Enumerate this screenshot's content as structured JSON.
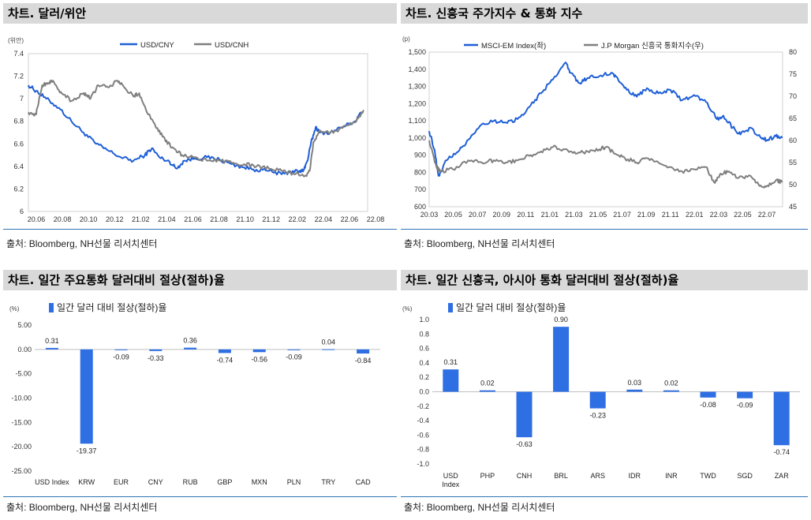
{
  "colors": {
    "blue": "#1f5fd6",
    "gray": "#7f7f7f",
    "bar": "#2f6fe4",
    "header_bg": "#d9d9d9",
    "rule": "#2e74b5"
  },
  "panels": [
    {
      "title": "차트. 달러/위안",
      "source": "출처: Bloomberg, NH선물 리서치센터"
    },
    {
      "title": "차트. 신흥국 주가지수 & 통화 지수",
      "source": "출처: Bloomberg, NH선물 리서치센터"
    },
    {
      "title": "차트. 일간 주요통화 달러대비 절상(절하)율",
      "source": "출처: Bloomberg, NH선물 리서치센터"
    },
    {
      "title": "차트. 일간 신흥국, 아시아 통화 달러대비 절상(절하)율",
      "source": "출처: Bloomberg, NH선물 리서치센터"
    }
  ],
  "chart_data": [
    {
      "type": "line",
      "unit_label": "(위안)",
      "y_ticks": [
        "7.4",
        "7.2",
        "7",
        "6.8",
        "6.6",
        "6.4",
        "6.2",
        "6"
      ],
      "ylim": [
        6,
        7.4
      ],
      "x_ticks": [
        "20.06",
        "20.08",
        "20.10",
        "20.12",
        "21.02",
        "21.04",
        "21.06",
        "21.08",
        "21.10",
        "21.12",
        "22.02",
        "22.04",
        "22.06",
        "22.08"
      ],
      "x_range": [
        "2020-06-01",
        "2022-09-15"
      ],
      "series": [
        {
          "name": "USD/CNY",
          "color": "#1f5fd6",
          "points": [
            [
              "2020-06-01",
              7.12
            ],
            [
              "2020-06-20",
              7.07
            ],
            [
              "2020-07-15",
              7.0
            ],
            [
              "2020-08-15",
              6.92
            ],
            [
              "2020-09-15",
              6.8
            ],
            [
              "2020-10-15",
              6.7
            ],
            [
              "2020-11-15",
              6.6
            ],
            [
              "2020-12-15",
              6.54
            ],
            [
              "2021-01-15",
              6.48
            ],
            [
              "2021-02-15",
              6.45
            ],
            [
              "2021-03-15",
              6.5
            ],
            [
              "2021-04-01",
              6.56
            ],
            [
              "2021-04-20",
              6.48
            ],
            [
              "2021-05-15",
              6.44
            ],
            [
              "2021-06-01",
              6.38
            ],
            [
              "2021-06-20",
              6.45
            ],
            [
              "2021-07-15",
              6.47
            ],
            [
              "2021-08-15",
              6.48
            ],
            [
              "2021-09-15",
              6.46
            ],
            [
              "2021-10-15",
              6.42
            ],
            [
              "2021-11-15",
              6.39
            ],
            [
              "2021-12-15",
              6.37
            ],
            [
              "2022-01-15",
              6.36
            ],
            [
              "2022-02-15",
              6.33
            ],
            [
              "2022-03-15",
              6.36
            ],
            [
              "2022-04-01",
              6.35
            ],
            [
              "2022-04-10",
              6.37
            ],
            [
              "2022-04-20",
              6.45
            ],
            [
              "2022-04-28",
              6.6
            ],
            [
              "2022-05-10",
              6.75
            ],
            [
              "2022-05-20",
              6.7
            ],
            [
              "2022-06-15",
              6.7
            ],
            [
              "2022-07-15",
              6.75
            ],
            [
              "2022-08-15",
              6.8
            ],
            [
              "2022-09-01",
              6.88
            ]
          ]
        },
        {
          "name": "USD/CNH",
          "color": "#7f7f7f",
          "points": [
            [
              "2020-06-01",
              6.88
            ],
            [
              "2020-06-20",
              6.86
            ],
            [
              "2020-07-05",
              7.12
            ],
            [
              "2020-07-20",
              7.14
            ],
            [
              "2020-08-01",
              7.16
            ],
            [
              "2020-08-20",
              7.06
            ],
            [
              "2020-09-15",
              6.98
            ],
            [
              "2020-10-15",
              7.05
            ],
            [
              "2020-11-01",
              7.0
            ],
            [
              "2020-11-20",
              7.12
            ],
            [
              "2020-12-15",
              7.1
            ],
            [
              "2021-01-05",
              7.16
            ],
            [
              "2021-01-20",
              7.12
            ],
            [
              "2021-02-15",
              7.02
            ],
            [
              "2021-03-01",
              7.05
            ],
            [
              "2021-03-20",
              6.88
            ],
            [
              "2021-04-15",
              6.74
            ],
            [
              "2021-05-05",
              6.62
            ],
            [
              "2021-05-25",
              6.56
            ],
            [
              "2021-06-15",
              6.5
            ],
            [
              "2021-07-15",
              6.48
            ],
            [
              "2021-08-15",
              6.45
            ],
            [
              "2021-09-15",
              6.45
            ],
            [
              "2021-10-15",
              6.43
            ],
            [
              "2021-11-15",
              6.42
            ],
            [
              "2021-12-15",
              6.4
            ],
            [
              "2022-01-15",
              6.38
            ],
            [
              "2022-02-15",
              6.36
            ],
            [
              "2022-03-15",
              6.34
            ],
            [
              "2022-04-15",
              6.32
            ],
            [
              "2022-04-25",
              6.36
            ],
            [
              "2022-05-05",
              6.62
            ],
            [
              "2022-05-20",
              6.72
            ],
            [
              "2022-06-15",
              6.7
            ],
            [
              "2022-07-15",
              6.74
            ],
            [
              "2022-08-15",
              6.79
            ],
            [
              "2022-09-05",
              6.9
            ]
          ]
        }
      ]
    },
    {
      "type": "line",
      "unit_label": "(p)",
      "y_ticks_left": [
        "1,500",
        "1,400",
        "1,300",
        "1,200",
        "1,100",
        "1,000",
        "900",
        "800",
        "700",
        "600"
      ],
      "ylim_left": [
        600,
        1500
      ],
      "y_ticks_right": [
        "80",
        "75",
        "70",
        "65",
        "60",
        "55",
        "50",
        "45"
      ],
      "ylim_right": [
        45,
        80
      ],
      "x_ticks": [
        "20.03",
        "20.05",
        "20.07",
        "20.09",
        "20.11",
        "21.01",
        "21.03",
        "21.05",
        "21.07",
        "21.09",
        "21.11",
        "22.01",
        "22.03",
        "22.05",
        "22.07"
      ],
      "x_range": [
        "2020-03-01",
        "2022-09-01"
      ],
      "series": [
        {
          "name": "MSCI-EM Index(좌)",
          "axis": "left",
          "color": "#1f5fd6",
          "points": [
            [
              "2020-03-01",
              1040
            ],
            [
              "2020-03-15",
              930
            ],
            [
              "2020-03-25",
              780
            ],
            [
              "2020-04-15",
              870
            ],
            [
              "2020-05-15",
              920
            ],
            [
              "2020-06-10",
              990
            ],
            [
              "2020-07-15",
              1080
            ],
            [
              "2020-08-15",
              1100
            ],
            [
              "2020-09-15",
              1090
            ],
            [
              "2020-10-15",
              1110
            ],
            [
              "2020-11-15",
              1180
            ],
            [
              "2020-12-15",
              1260
            ],
            [
              "2021-01-15",
              1340
            ],
            [
              "2021-02-17",
              1440
            ],
            [
              "2021-03-01",
              1380
            ],
            [
              "2021-03-25",
              1320
            ],
            [
              "2021-04-15",
              1350
            ],
            [
              "2021-05-15",
              1360
            ],
            [
              "2021-06-15",
              1380
            ],
            [
              "2021-07-01",
              1350
            ],
            [
              "2021-07-25",
              1280
            ],
            [
              "2021-08-20",
              1240
            ],
            [
              "2021-09-15",
              1290
            ],
            [
              "2021-10-15",
              1260
            ],
            [
              "2021-11-15",
              1280
            ],
            [
              "2021-12-15",
              1220
            ],
            [
              "2022-01-15",
              1250
            ],
            [
              "2022-02-15",
              1210
            ],
            [
              "2022-03-15",
              1110
            ],
            [
              "2022-04-01",
              1130
            ],
            [
              "2022-04-25",
              1060
            ],
            [
              "2022-05-15",
              1020
            ],
            [
              "2022-06-10",
              1060
            ],
            [
              "2022-07-10",
              995
            ],
            [
              "2022-07-25",
              990
            ],
            [
              "2022-08-15",
              1010
            ],
            [
              "2022-08-31",
              1000
            ]
          ]
        },
        {
          "name": "J.P Morgan 신흥국 통화지수(우)",
          "axis": "right",
          "color": "#7f7f7f",
          "points": [
            [
              "2020-03-01",
              60
            ],
            [
              "2020-03-20",
              54
            ],
            [
              "2020-04-01",
              53
            ],
            [
              "2020-05-01",
              53.5
            ],
            [
              "2020-06-10",
              55.5
            ],
            [
              "2020-07-15",
              55
            ],
            [
              "2020-08-15",
              55.5
            ],
            [
              "2020-09-15",
              55
            ],
            [
              "2020-10-15",
              55.5
            ],
            [
              "2020-11-15",
              56.5
            ],
            [
              "2020-12-15",
              57.5
            ],
            [
              "2021-01-15",
              58.5
            ],
            [
              "2021-02-15",
              58
            ],
            [
              "2021-03-15",
              57
            ],
            [
              "2021-04-15",
              57.5
            ],
            [
              "2021-05-15",
              58
            ],
            [
              "2021-06-01",
              58.5
            ],
            [
              "2021-06-25",
              57
            ],
            [
              "2021-07-20",
              56
            ],
            [
              "2021-08-20",
              55
            ],
            [
              "2021-09-15",
              56
            ],
            [
              "2021-10-15",
              55
            ],
            [
              "2021-11-15",
              54
            ],
            [
              "2021-12-15",
              53
            ],
            [
              "2022-01-15",
              53.5
            ],
            [
              "2022-02-15",
              54
            ],
            [
              "2022-03-08",
              50.5
            ],
            [
              "2022-03-25",
              52.5
            ],
            [
              "2022-04-15",
              53
            ],
            [
              "2022-05-10",
              51.5
            ],
            [
              "2022-06-10",
              52
            ],
            [
              "2022-07-01",
              50
            ],
            [
              "2022-07-20",
              49.5
            ],
            [
              "2022-08-15",
              51
            ],
            [
              "2022-08-31",
              50.5
            ]
          ]
        }
      ]
    },
    {
      "type": "bar",
      "unit_label": "(%)",
      "legend": "일간 달러 대비 절상(절하)율",
      "y_ticks": [
        "5.00",
        "0.00",
        "-5.00",
        "-10.00",
        "-15.00",
        "-20.00",
        "-25.00"
      ],
      "ylim": [
        -25,
        5
      ],
      "categories": [
        "USD Index",
        "KRW",
        "EUR",
        "CNY",
        "RUB",
        "GBP",
        "MXN",
        "PLN",
        "TRY",
        "CAD"
      ],
      "values": [
        0.31,
        -19.37,
        -0.09,
        -0.33,
        0.36,
        -0.74,
        -0.56,
        -0.09,
        0.04,
        -0.84
      ],
      "labels": [
        "0.31",
        "-19.37",
        "-0.09",
        "-0.33",
        "0.36",
        "-0.74",
        "-0.56",
        "-0.09",
        "0.04",
        "-0.84"
      ]
    },
    {
      "type": "bar",
      "unit_label": "(%)",
      "legend": "일간 달러 대비 절상(절하)율",
      "y_ticks": [
        "1.0",
        "0.8",
        "0.6",
        "0.4",
        "0.2",
        "0.0",
        "-0.2",
        "-0.4",
        "-0.6",
        "-0.8",
        "-1.0"
      ],
      "ylim": [
        -1,
        1
      ],
      "categories": [
        "USD Index",
        "PHP",
        "CNH",
        "BRL",
        "ARS",
        "IDR",
        "INR",
        "TWD",
        "SGD",
        "ZAR"
      ],
      "values": [
        0.31,
        0.02,
        -0.63,
        0.9,
        -0.23,
        0.03,
        0.02,
        -0.08,
        -0.09,
        -0.74
      ],
      "labels": [
        "0.31",
        "0.02",
        "-0.63",
        "0.90",
        "-0.23",
        "0.03",
        "0.02",
        "-0.08",
        "-0.09",
        "-0.74"
      ]
    }
  ]
}
